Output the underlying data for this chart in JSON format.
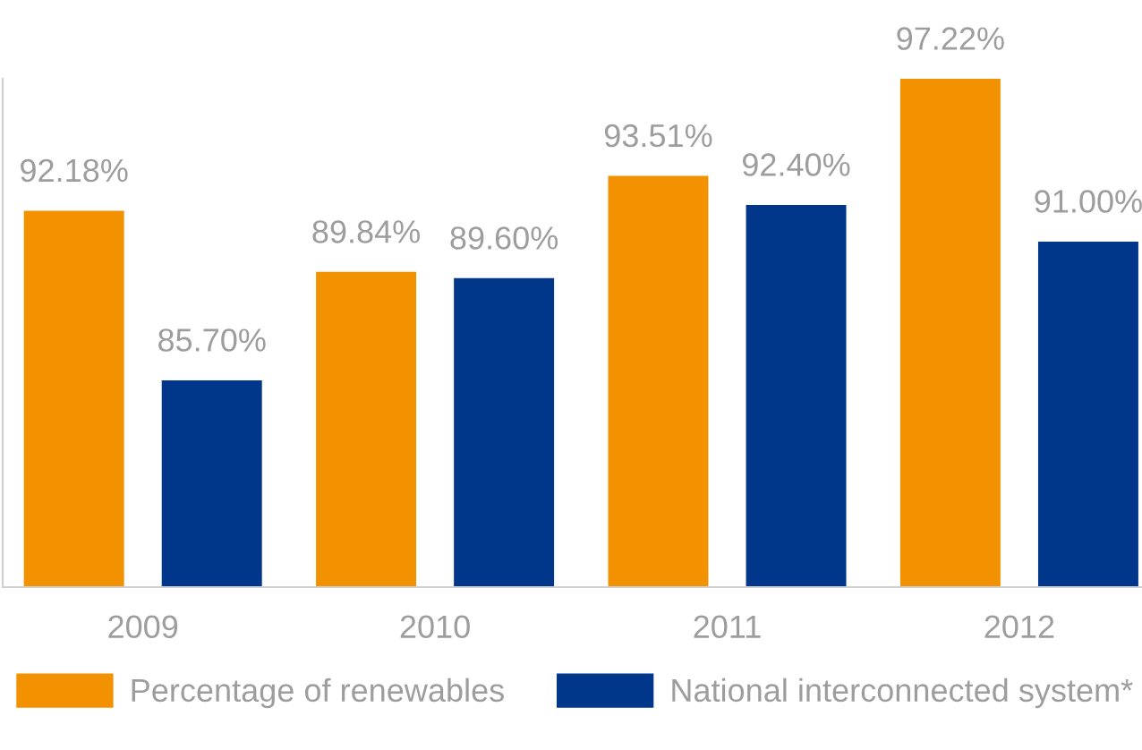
{
  "chart_data": {
    "type": "bar",
    "categories": [
      "2009",
      "2010",
      "2011",
      "2012"
    ],
    "series": [
      {
        "name": "Percentage of renewables",
        "color": "#f39200",
        "values": [
          92.18,
          89.84,
          93.51,
          97.22
        ],
        "value_labels": [
          "92.18%",
          "89.84%",
          "93.51%",
          "97.22%"
        ]
      },
      {
        "name": "National interconnected system*",
        "color": "#00378a",
        "values": [
          85.7,
          89.6,
          92.4,
          91.0
        ],
        "value_labels": [
          "85.70%",
          "89.60%",
          "92.40%",
          "91.00%"
        ]
      }
    ],
    "ylim": [
      77.8,
      97.22
    ],
    "tick_labels": "x",
    "legend": "bottom"
  }
}
